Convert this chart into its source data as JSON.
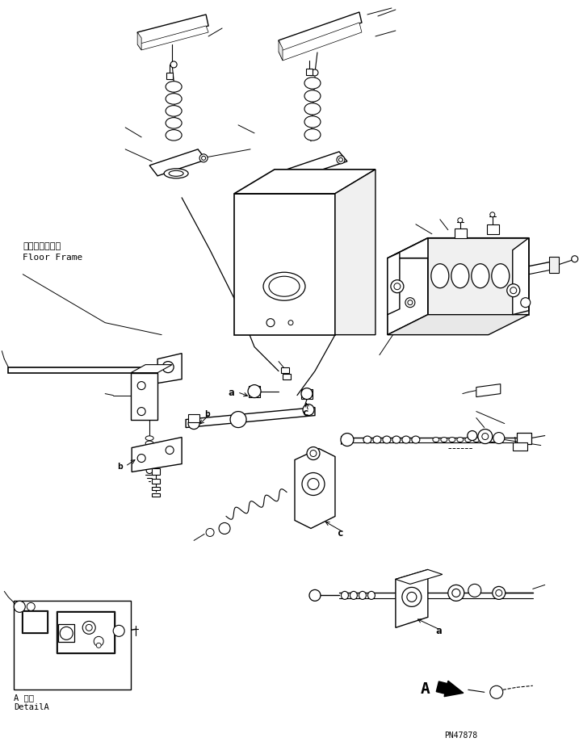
{
  "background_color": "#ffffff",
  "part_number": "PN47878",
  "fig_width": 7.17,
  "fig_height": 9.19,
  "dpi": 100,
  "floor_frame_jp": "フロアフレーム",
  "floor_frame_en": "Floor Frame",
  "detail_jp": "A 詳細",
  "detail_en": "DetailA"
}
